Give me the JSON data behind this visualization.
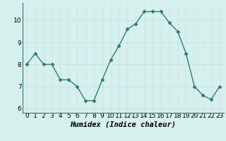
{
  "x": [
    0,
    1,
    2,
    3,
    4,
    5,
    6,
    7,
    8,
    9,
    10,
    11,
    12,
    13,
    14,
    15,
    16,
    17,
    18,
    19,
    20,
    21,
    22,
    23
  ],
  "y": [
    8.0,
    8.5,
    8.0,
    8.0,
    7.3,
    7.3,
    7.0,
    6.35,
    6.35,
    7.3,
    8.2,
    8.85,
    9.6,
    9.85,
    10.4,
    10.4,
    10.4,
    9.9,
    9.5,
    8.5,
    7.0,
    6.6,
    6.4,
    7.0
  ],
  "line_color": "#2e7d6e",
  "marker": "D",
  "marker_size": 2.5,
  "bg_color": "#d6f0ee",
  "grid_color": "#c8e6e2",
  "xlabel": "Humidex (Indice chaleur)",
  "xlabel_fontsize": 7.5,
  "tick_fontsize": 6.5,
  "ylim": [
    5.8,
    10.8
  ],
  "xlim": [
    -0.5,
    23.5
  ],
  "yticks": [
    6,
    7,
    8,
    9,
    10
  ],
  "xticks": [
    0,
    1,
    2,
    3,
    4,
    5,
    6,
    7,
    8,
    9,
    10,
    11,
    12,
    13,
    14,
    15,
    16,
    17,
    18,
    19,
    20,
    21,
    22,
    23
  ]
}
